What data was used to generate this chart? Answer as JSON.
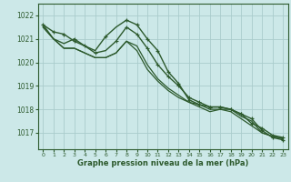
{
  "title": "Graphe pression niveau de la mer (hPa)",
  "bg_color": "#cce8e8",
  "grid_color": "#aacccc",
  "line_color": "#2d5a2d",
  "xlim": [
    -0.5,
    23.5
  ],
  "ylim": [
    1016.3,
    1022.5
  ],
  "yticks": [
    1017,
    1018,
    1019,
    1020,
    1021,
    1022
  ],
  "xticks": [
    0,
    1,
    2,
    3,
    4,
    5,
    6,
    7,
    8,
    9,
    10,
    11,
    12,
    13,
    14,
    15,
    16,
    17,
    18,
    19,
    20,
    21,
    22,
    23
  ],
  "series": [
    [
      1021.6,
      1021.3,
      1021.2,
      1020.9,
      1020.7,
      1020.5,
      1021.1,
      1021.5,
      1021.8,
      1021.6,
      1021.0,
      1020.5,
      1019.6,
      1019.1,
      1018.4,
      1018.2,
      1018.1,
      1018.1,
      1018.0,
      1017.8,
      1017.6,
      1017.1,
      1016.8,
      1016.7
    ],
    [
      1021.6,
      1021.0,
      1020.8,
      1021.0,
      1020.7,
      1020.4,
      1020.5,
      1020.9,
      1021.5,
      1021.2,
      1020.6,
      1019.9,
      1019.4,
      1019.0,
      1018.5,
      1018.3,
      1018.1,
      1018.1,
      1018.0,
      1017.8,
      1017.4,
      1017.2,
      1016.9,
      1016.8
    ],
    [
      1021.5,
      1021.0,
      1020.6,
      1020.6,
      1020.4,
      1020.2,
      1020.2,
      1020.4,
      1020.9,
      1020.7,
      1019.9,
      1019.3,
      1018.9,
      1018.6,
      1018.3,
      1018.2,
      1018.0,
      1018.0,
      1018.0,
      1017.7,
      1017.5,
      1017.0,
      1016.85,
      1016.75
    ],
    [
      1021.5,
      1021.0,
      1020.6,
      1020.6,
      1020.4,
      1020.2,
      1020.2,
      1020.4,
      1020.9,
      1020.5,
      1019.7,
      1019.2,
      1018.8,
      1018.5,
      1018.3,
      1018.1,
      1017.9,
      1018.0,
      1017.9,
      1017.6,
      1017.3,
      1017.0,
      1016.85,
      1016.75
    ]
  ],
  "marked_series": [
    0,
    1
  ],
  "marker_x_s0": [
    0,
    1,
    2,
    3,
    6,
    8,
    9,
    10,
    11,
    12,
    13,
    14,
    15,
    16,
    17,
    18,
    19,
    20,
    21,
    22,
    23
  ],
  "marker_x_s1": [
    3,
    4,
    5,
    7,
    8,
    9,
    10,
    11,
    12,
    13,
    14,
    15,
    16,
    17,
    18,
    19,
    20,
    21,
    22,
    23
  ]
}
